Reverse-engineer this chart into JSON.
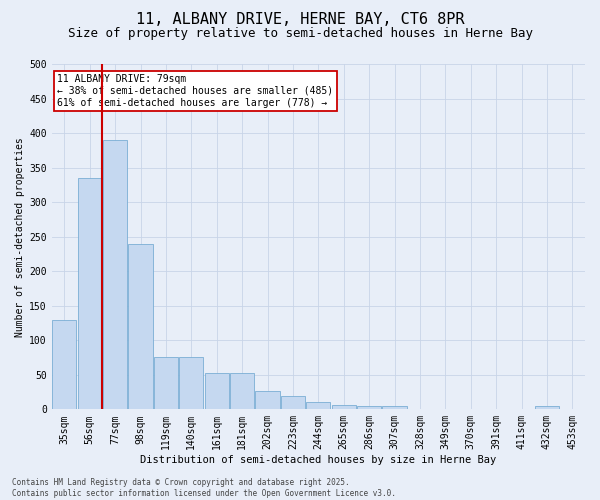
{
  "title_line1": "11, ALBANY DRIVE, HERNE BAY, CT6 8PR",
  "title_line2": "Size of property relative to semi-detached houses in Herne Bay",
  "xlabel": "Distribution of semi-detached houses by size in Herne Bay",
  "ylabel": "Number of semi-detached properties",
  "footer_line1": "Contains HM Land Registry data © Crown copyright and database right 2025.",
  "footer_line2": "Contains public sector information licensed under the Open Government Licence v3.0.",
  "annotation_line1": "11 ALBANY DRIVE: 79sqm",
  "annotation_line2": "← 38% of semi-detached houses are smaller (485)",
  "annotation_line3": "61% of semi-detached houses are larger (778) →",
  "categories": [
    "35sqm",
    "56sqm",
    "77sqm",
    "98sqm",
    "119sqm",
    "140sqm",
    "161sqm",
    "181sqm",
    "202sqm",
    "223sqm",
    "244sqm",
    "265sqm",
    "286sqm",
    "307sqm",
    "328sqm",
    "349sqm",
    "370sqm",
    "391sqm",
    "411sqm",
    "432sqm",
    "453sqm"
  ],
  "heights": [
    130,
    335,
    390,
    240,
    76,
    76,
    52,
    52,
    26,
    19,
    10,
    6,
    5,
    5,
    0,
    0,
    0,
    0,
    0,
    5,
    0
  ],
  "bar_color": "#c5d8f0",
  "bar_edge_color": "#7aaed4",
  "vline_color": "#cc0000",
  "vline_x": 1.5,
  "ylim": [
    0,
    500
  ],
  "yticks": [
    0,
    50,
    100,
    150,
    200,
    250,
    300,
    350,
    400,
    450,
    500
  ],
  "grid_color": "#c8d4e8",
  "background_color": "#e8eef8",
  "annotation_box_edge_color": "#cc0000",
  "annotation_box_face_color": "#ffffff",
  "title1_fontsize": 11,
  "title2_fontsize": 9,
  "axis_fontsize": 7,
  "ylabel_fontsize": 7,
  "xlabel_fontsize": 7.5,
  "annotation_fontsize": 7,
  "footer_fontsize": 5.5
}
